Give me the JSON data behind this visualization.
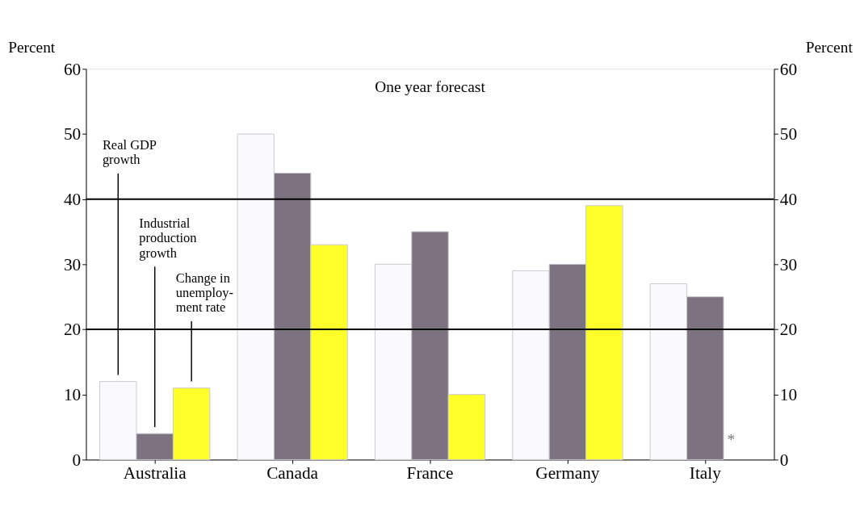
{
  "chart_data": {
    "type": "bar",
    "title": "One year forecast",
    "ylabel": "Percent",
    "y2label": "Percent",
    "categories": [
      "Australia",
      "Canada",
      "France",
      "Germany",
      "Italy"
    ],
    "series": [
      {
        "name": "Real GDP growth",
        "color": "#fafafc",
        "values": [
          12,
          50,
          30,
          29,
          27
        ]
      },
      {
        "name": "Industrial production growth",
        "color": "#7d7280",
        "values": [
          4,
          44,
          35,
          30,
          25
        ]
      },
      {
        "name": "Change in unemploy-ment rate",
        "color": "#ffff2a",
        "values": [
          11,
          33,
          10,
          39,
          null
        ]
      }
    ],
    "ylim": [
      0,
      60
    ],
    "yticks": [
      0,
      10,
      20,
      30,
      40,
      50,
      60
    ],
    "y2lim": [
      0,
      60
    ],
    "y2ticks": [
      0,
      10,
      20,
      30,
      40,
      50,
      60
    ],
    "ref_lines": [
      {
        "axis": "y",
        "value": 40,
        "color": "#000000"
      },
      {
        "axis": "y",
        "value": 20,
        "color": "#000000"
      }
    ],
    "annotations": [
      "*"
    ],
    "grid": false,
    "legend": false
  }
}
